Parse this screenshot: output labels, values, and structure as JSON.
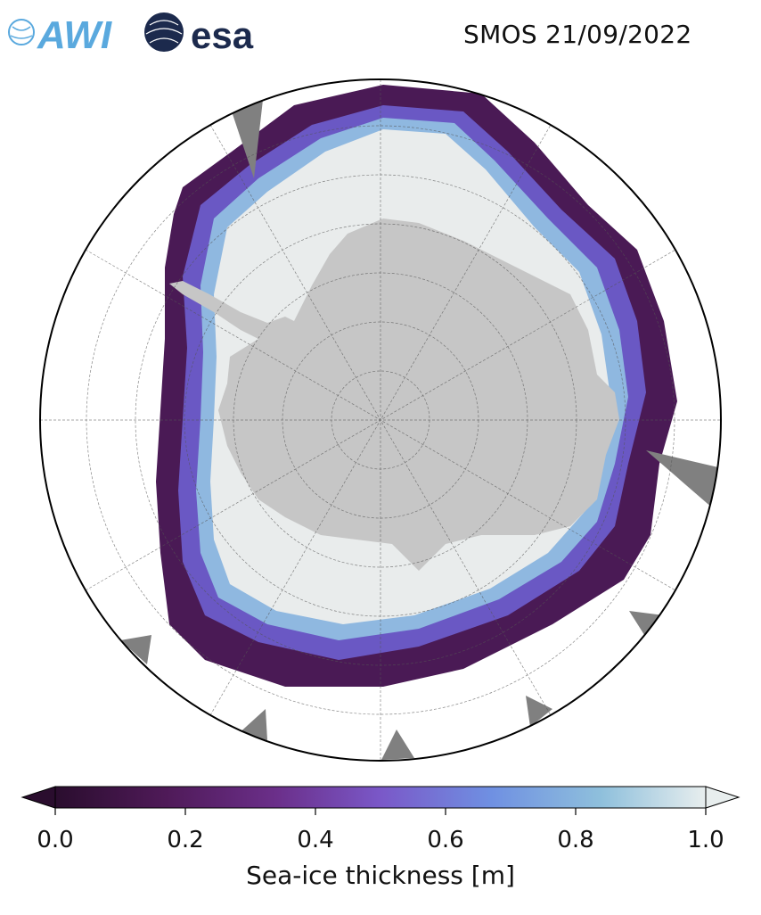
{
  "header": {
    "title": "SMOS 21/09/2022",
    "logo_awi_text": "AWI",
    "logo_esa_text": "esa"
  },
  "map": {
    "region": "Antarctica",
    "projection": "south-polar-stereographic",
    "land_color": "#c6c6c6",
    "nodata_color": "#808080",
    "ocean_color": "#ffffff",
    "gridlines": true
  },
  "colorbar": {
    "label": "Sea-ice thickness [m]",
    "min": 0.0,
    "max": 1.0,
    "extend": "both",
    "ticks": [
      "0.0",
      "0.2",
      "0.4",
      "0.6",
      "0.8",
      "1.0"
    ],
    "colormap": [
      "#2a0d2e",
      "#4f1a58",
      "#6b2f8a",
      "#7a58c8",
      "#6f90e2",
      "#8fc0dc",
      "#e8eeee"
    ]
  }
}
